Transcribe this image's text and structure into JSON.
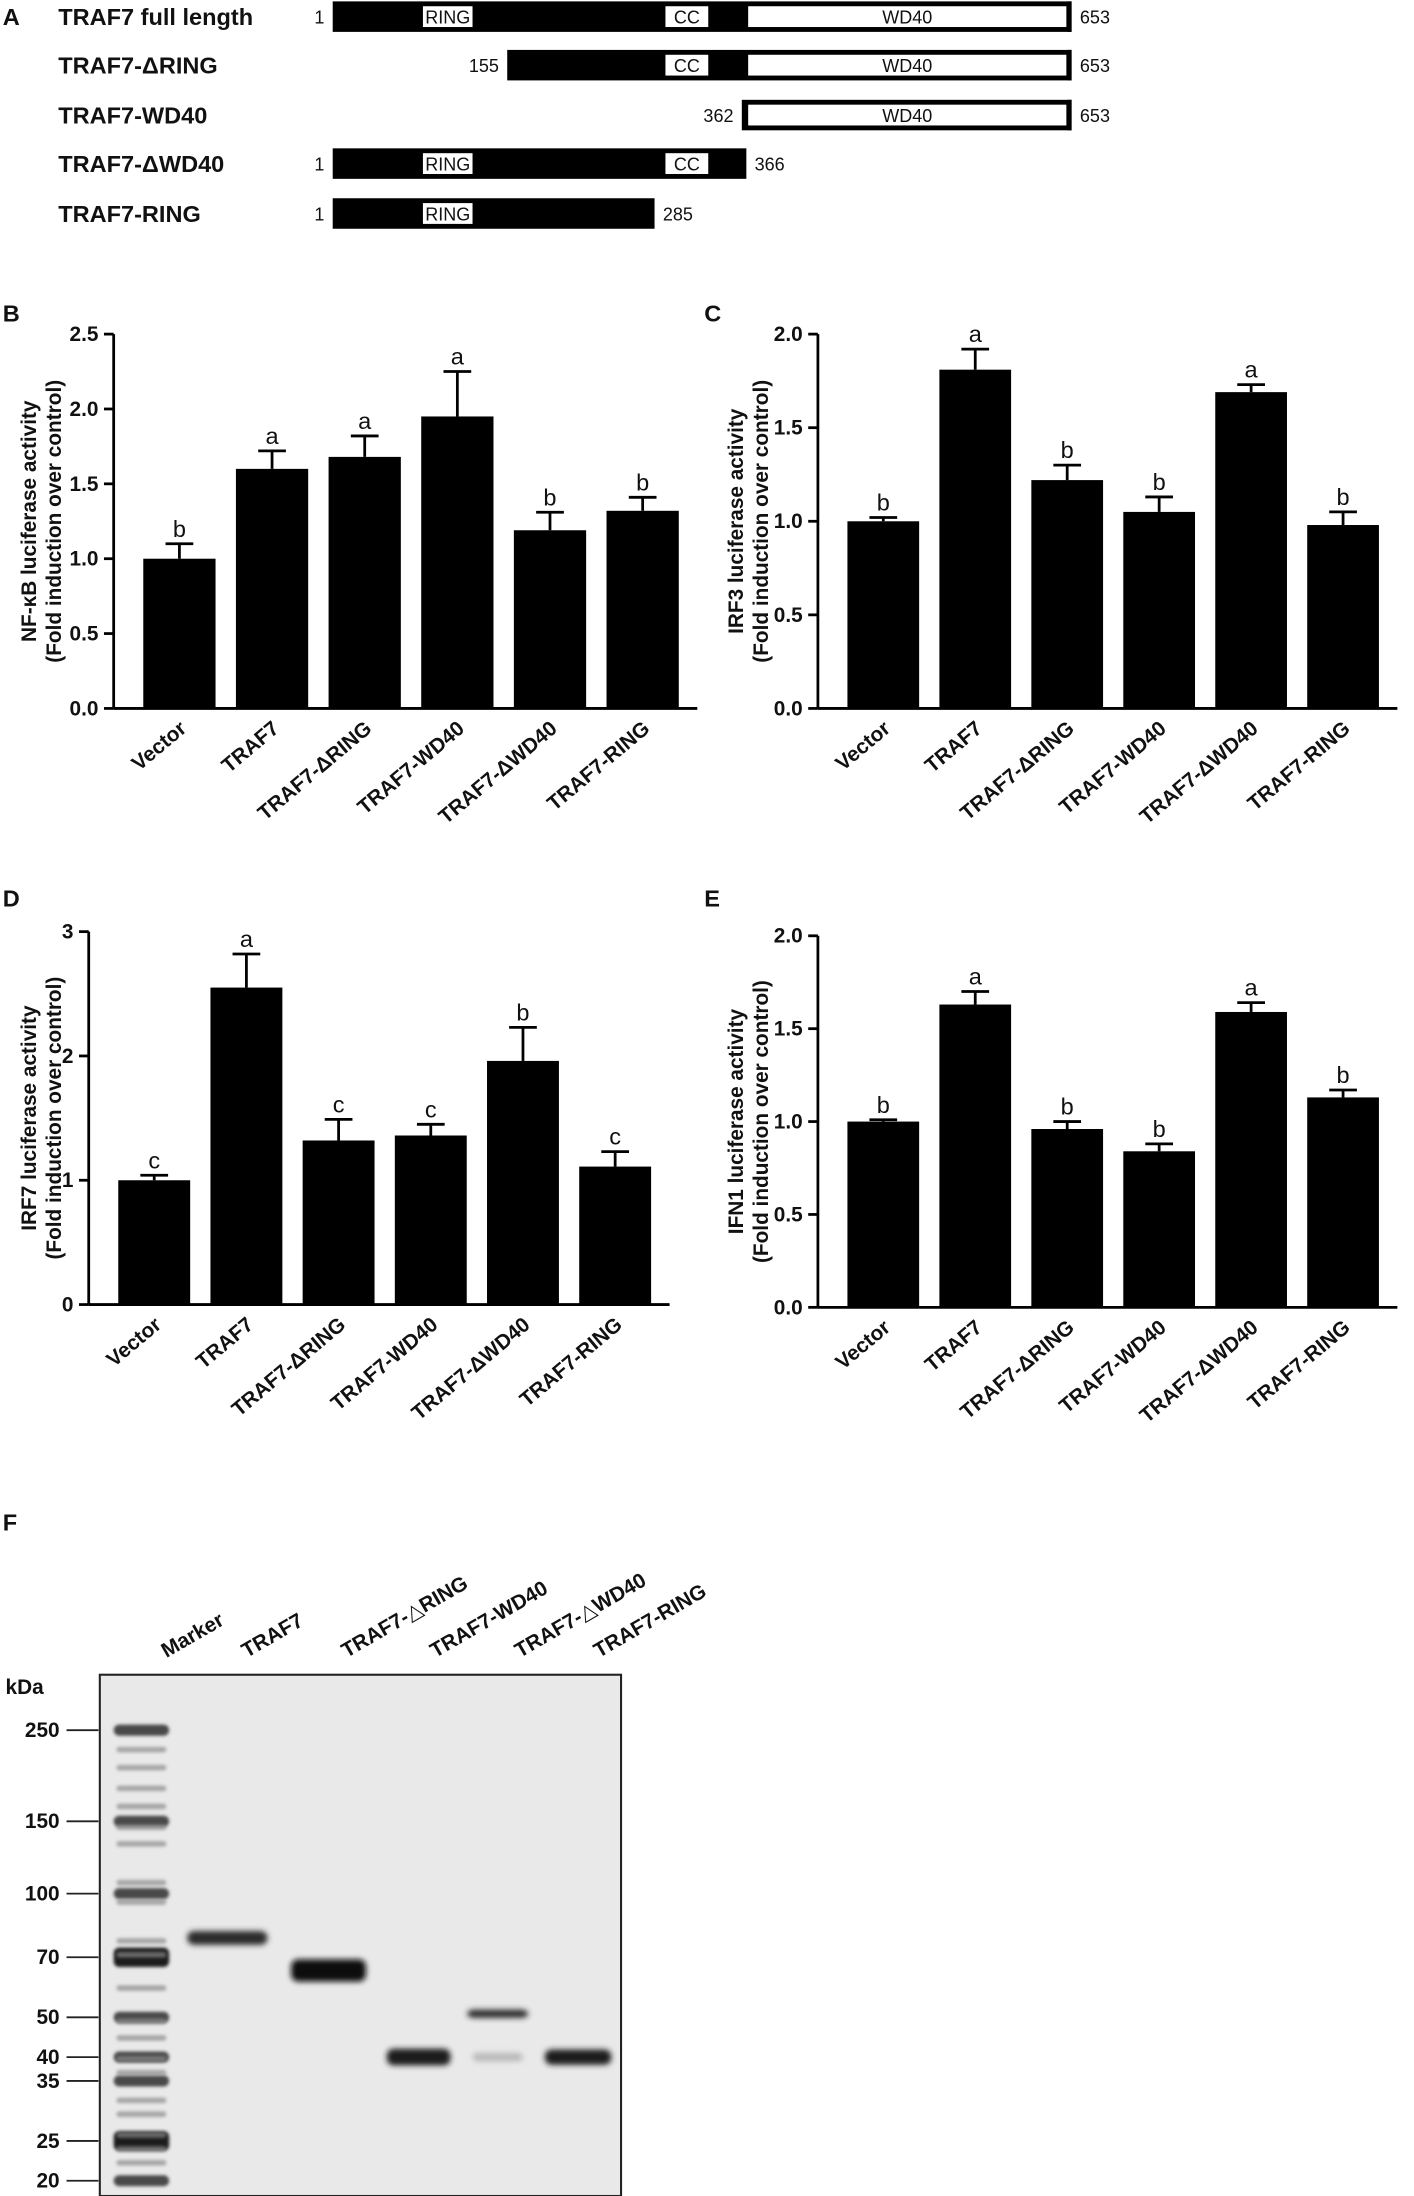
{
  "panels": {
    "A": "A",
    "B": "B",
    "C": "C",
    "D": "D",
    "E": "E",
    "F": "F"
  },
  "constructs": [
    {
      "name": "TRAF7 full length",
      "start": 1,
      "end": 653,
      "domains": [
        {
          "label": "RING",
          "start": 80,
          "end": 125
        },
        {
          "label": "CC",
          "start": 294,
          "end": 333
        },
        {
          "label": "WD40",
          "start": 367,
          "end": 649
        }
      ],
      "start_label": "1",
      "end_label": "653",
      "end_cap": true
    },
    {
      "name": "TRAF7-ΔRING",
      "start": 155,
      "end": 653,
      "domains": [
        {
          "label": "CC",
          "start": 294,
          "end": 333
        },
        {
          "label": "WD40",
          "start": 367,
          "end": 649
        }
      ],
      "start_label": "155",
      "end_label": "653",
      "end_cap": true
    },
    {
      "name": "TRAF7-WD40",
      "start": 362,
      "end": 653,
      "domains": [
        {
          "label": "WD40",
          "start": 367,
          "end": 649
        }
      ],
      "start_label": "362",
      "end_label": "653",
      "end_cap": true
    },
    {
      "name": "TRAF7-ΔWD40",
      "start": 1,
      "end": 366,
      "domains": [
        {
          "label": "RING",
          "start": 80,
          "end": 125
        },
        {
          "label": "CC",
          "start": 294,
          "end": 333
        }
      ],
      "start_label": "1",
      "end_label": "366",
      "end_cap": false
    },
    {
      "name": "TRAF7-RING",
      "start": 1,
      "end": 285,
      "domains": [
        {
          "label": "RING",
          "start": 80,
          "end": 125
        }
      ],
      "start_label": "1",
      "end_label": "285",
      "end_cap": false
    }
  ],
  "chart_data": [
    {
      "panel": "B",
      "type": "bar",
      "ylabel": "NF-κB luciferase activity",
      "ylabel2": "(Fold induction over control)",
      "ylim": [
        0,
        2.5
      ],
      "yticks": [
        "0.0",
        "0.5",
        "1.0",
        "1.5",
        "2.0",
        "2.5"
      ],
      "categories": [
        "Vector",
        "TRAF7",
        "TRAF7-ΔRING",
        "TRAF7-WD40",
        "TRAF7-ΔWD40",
        "TRAF7-RING"
      ],
      "values": [
        1.0,
        1.6,
        1.68,
        1.95,
        1.19,
        1.32
      ],
      "errors": [
        0.1,
        0.12,
        0.14,
        0.3,
        0.12,
        0.09
      ],
      "labels": [
        "b",
        "a",
        "a",
        "a",
        "b",
        "b"
      ]
    },
    {
      "panel": "C",
      "type": "bar",
      "ylabel": "IRF3 luciferase activity",
      "ylabel2": "(Fold induction over control)",
      "ylim": [
        0,
        2.0
      ],
      "yticks": [
        "0.0",
        "0.5",
        "1.0",
        "1.5",
        "2.0"
      ],
      "categories": [
        "Vector",
        "TRAF7",
        "TRAF7-ΔRING",
        "TRAF7-WD40",
        "TRAF7-ΔWD40",
        "TRAF7-RING"
      ],
      "values": [
        1.0,
        1.81,
        1.22,
        1.05,
        1.69,
        0.98
      ],
      "errors": [
        0.02,
        0.11,
        0.08,
        0.08,
        0.04,
        0.07
      ],
      "labels": [
        "b",
        "a",
        "b",
        "b",
        "a",
        "b"
      ]
    },
    {
      "panel": "D",
      "type": "bar",
      "ylabel": "IRF7 luciferase activity",
      "ylabel2": "(Fold induction over control)",
      "ylim": [
        0,
        3
      ],
      "yticks": [
        "0",
        "1",
        "2",
        "3"
      ],
      "categories": [
        "Vector",
        "TRAF7",
        "TRAF7-ΔRING",
        "TRAF7-WD40",
        "TRAF7-ΔWD40",
        "TRAF7-RING"
      ],
      "values": [
        1.0,
        2.55,
        1.32,
        1.36,
        1.96,
        1.11
      ],
      "errors": [
        0.04,
        0.27,
        0.17,
        0.09,
        0.27,
        0.12
      ],
      "labels": [
        "c",
        "a",
        "c",
        "c",
        "b",
        "c"
      ]
    },
    {
      "panel": "E",
      "type": "bar",
      "ylabel": "IFN1 luciferase activity",
      "ylabel2": "(Fold induction over control)",
      "ylim": [
        0,
        2.0
      ],
      "yticks": [
        "0.0",
        "0.5",
        "1.0",
        "1.5",
        "2.0"
      ],
      "categories": [
        "Vector",
        "TRAF7",
        "TRAF7-ΔRING",
        "TRAF7-WD40",
        "TRAF7-ΔWD40",
        "TRAF7-RING"
      ],
      "values": [
        1.0,
        1.63,
        0.96,
        0.84,
        1.59,
        1.13
      ],
      "errors": [
        0.01,
        0.07,
        0.04,
        0.04,
        0.05,
        0.04
      ],
      "labels": [
        "b",
        "a",
        "b",
        "b",
        "a",
        "b"
      ]
    }
  ],
  "blot": {
    "unit_label": "kDa",
    "lanes": [
      "Marker",
      "TRAF7",
      "TRAF7-△RING",
      "TRAF7-WD40",
      "TRAF7-△WD40",
      "TRAF7-RING"
    ],
    "markers": [
      {
        "label": "250",
        "kda": 250
      },
      {
        "label": "150",
        "kda": 150
      },
      {
        "label": "100",
        "kda": 100
      },
      {
        "label": "70",
        "kda": 70
      },
      {
        "label": "50",
        "kda": 50
      },
      {
        "label": "40",
        "kda": 40
      },
      {
        "label": "35",
        "kda": 35
      },
      {
        "label": "25",
        "kda": 25
      },
      {
        "label": "20",
        "kda": 20
      }
    ],
    "bands": [
      {
        "lane": "TRAF7",
        "kda": 78
      },
      {
        "lane": "TRAF7-△RING",
        "kda": 65
      },
      {
        "lane": "TRAF7-WD40",
        "kda": 40
      },
      {
        "lane": "TRAF7-△WD40",
        "kda": 51
      },
      {
        "lane": "TRAF7-RING",
        "kda": 40
      }
    ]
  }
}
